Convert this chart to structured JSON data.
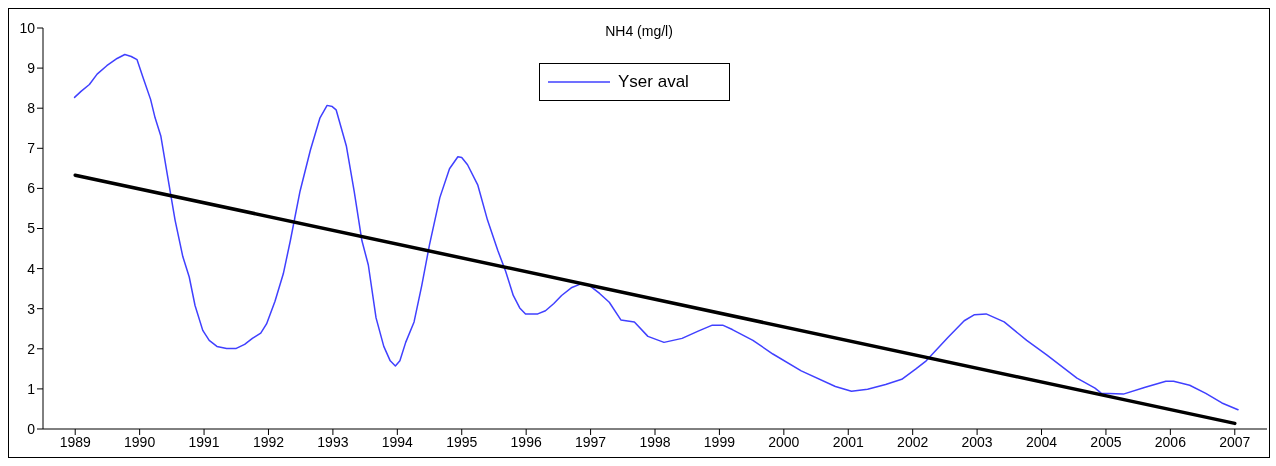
{
  "chart_data": {
    "type": "line",
    "title": "NH4 (mg/l)",
    "xlim": [
      1988.5,
      2007.5
    ],
    "xticks": [
      1989,
      1990,
      1991,
      1992,
      1993,
      1994,
      1995,
      1996,
      1997,
      1998,
      1999,
      2000,
      2001,
      2002,
      2003,
      2004,
      2005,
      2006,
      2007
    ],
    "ylim": [
      0,
      10
    ],
    "yticks": [
      0,
      1,
      2,
      3,
      4,
      5,
      6,
      7,
      8,
      9,
      10
    ],
    "grid": false,
    "legend": "top",
    "marker": "none",
    "line_style": "solid",
    "series": [
      {
        "name": "Yser aval",
        "color": "#4040ff",
        "x": [
          1988.99,
          1989.09,
          1989.22,
          1989.34,
          1989.49,
          1989.65,
          1989.77,
          1989.87,
          1989.96,
          1990.05,
          1990.17,
          1990.24,
          1990.33,
          1990.42,
          1990.55,
          1990.67,
          1990.77,
          1990.86,
          1990.98,
          1991.08,
          1991.2,
          1991.35,
          1991.5,
          1991.63,
          1991.75,
          1991.88,
          1991.97,
          1992.1,
          1992.23,
          1992.34,
          1992.49,
          1992.65,
          1992.8,
          1992.91,
          1992.99,
          1993.05,
          1993.21,
          1993.33,
          1993.45,
          1993.55,
          1993.67,
          1993.79,
          1993.89,
          1993.97,
          1994.04,
          1994.13,
          1994.26,
          1994.38,
          1994.5,
          1994.66,
          1994.81,
          1994.94,
          1995.0,
          1995.09,
          1995.25,
          1995.4,
          1995.56,
          1995.68,
          1995.8,
          1995.9,
          1995.99,
          1996.18,
          1996.3,
          1996.43,
          1996.55,
          1996.71,
          1996.85,
          1996.98,
          1997.14,
          1997.29,
          1997.47,
          1997.68,
          1997.89,
          1998.14,
          1998.42,
          1998.67,
          1998.89,
          1999.05,
          1999.2,
          1999.52,
          1999.83,
          2000.27,
          2000.8,
          2001.05,
          2001.3,
          2001.58,
          2001.83,
          2002.05,
          2002.21,
          2002.55,
          2002.8,
          2002.96,
          2003.14,
          2003.42,
          2003.77,
          2004.08,
          2004.55,
          2004.83,
          2004.93,
          2005.27,
          2005.61,
          2005.93,
          2006.05,
          2006.3,
          2006.55,
          2006.8,
          2007.05
        ],
        "values": [
          8.27,
          8.42,
          8.59,
          8.85,
          9.06,
          9.24,
          9.34,
          9.29,
          9.21,
          8.78,
          8.22,
          7.76,
          7.3,
          6.44,
          5.21,
          4.3,
          3.79,
          3.08,
          2.46,
          2.21,
          2.06,
          2.01,
          2.01,
          2.11,
          2.26,
          2.39,
          2.62,
          3.18,
          3.87,
          4.7,
          5.93,
          6.95,
          7.76,
          8.07,
          8.04,
          7.96,
          7.05,
          5.93,
          4.7,
          4.09,
          2.77,
          2.06,
          1.7,
          1.57,
          1.7,
          2.16,
          2.67,
          3.58,
          4.6,
          5.77,
          6.49,
          6.79,
          6.77,
          6.59,
          6.08,
          5.21,
          4.45,
          3.94,
          3.33,
          3.02,
          2.87,
          2.87,
          2.95,
          3.13,
          3.33,
          3.53,
          3.62,
          3.58,
          3.38,
          3.16,
          2.72,
          2.67,
          2.31,
          2.16,
          2.26,
          2.44,
          2.59,
          2.59,
          2.48,
          2.21,
          1.87,
          1.45,
          1.06,
          0.94,
          0.99,
          1.11,
          1.24,
          1.5,
          1.7,
          2.29,
          2.7,
          2.85,
          2.87,
          2.67,
          2.21,
          1.85,
          1.27,
          1.02,
          0.89,
          0.87,
          1.04,
          1.19,
          1.19,
          1.09,
          0.89,
          0.65,
          0.48
        ]
      },
      {
        "type": "line",
        "color": "#000000",
        "x": [
          1989,
          2007
        ],
        "values": [
          6.33,
          0.14
        ]
      }
    ]
  }
}
